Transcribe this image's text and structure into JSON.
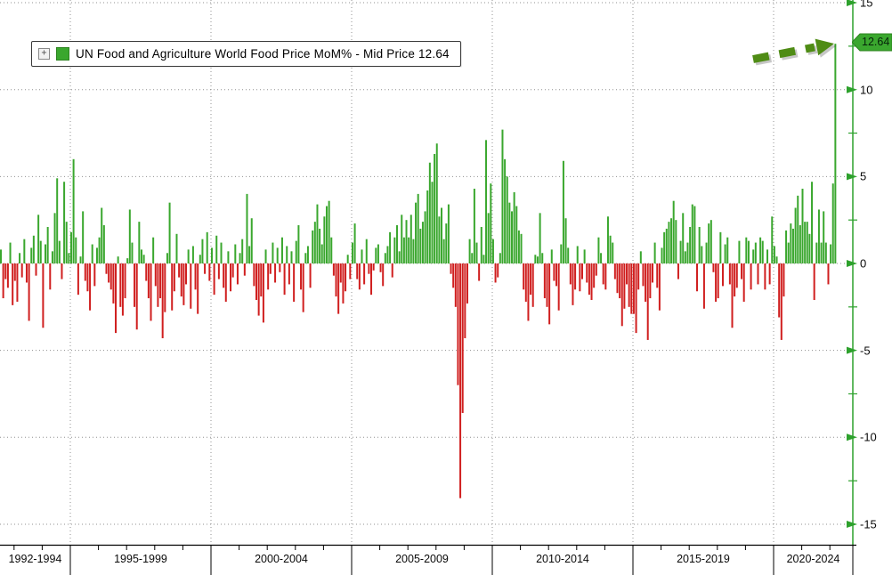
{
  "legend": {
    "label": "UN Food and Agriculture World Food Price MoM% - Mid Price 12.64",
    "expand_icon_glyph": "+",
    "swatch_color": "#3aa72e"
  },
  "y_axis": {
    "tick_labels": [
      "15",
      "10",
      "5",
      "0",
      "-5",
      "-10",
      "-15"
    ],
    "tick_values": [
      15,
      10,
      5,
      0,
      -5,
      -10,
      -15
    ],
    "minor_tick_values": [
      12.5,
      7.5,
      2.5,
      -2.5,
      -7.5,
      -12.5
    ],
    "last_price_badge": "12.64",
    "axis_color": "#2da12c"
  },
  "x_axis": {
    "section_labels": [
      "1992-1994",
      "1995-1999",
      "2000-2004",
      "2005-2009",
      "2010-2014",
      "2015-2019",
      "2020-2024"
    ]
  },
  "annotation": {
    "type": "dashed-arrow",
    "color": "#4f8c15",
    "points_to": "latest bar peak 12.64"
  },
  "chart_data": {
    "type": "bar",
    "title": "UN Food and Agriculture World Food Price MoM% - Mid Price 12.64",
    "ylabel": "MoM %",
    "ylim": [
      -15,
      15
    ],
    "yticks": [
      15,
      10,
      5,
      0,
      -5,
      -10,
      -15
    ],
    "grid": "dotted",
    "legend_position": "top-left",
    "start_month": "1992-07",
    "end_month": "2022-03",
    "last_value": 12.64,
    "colors": {
      "positive": "#3aa72e",
      "negative": "#d01f1f",
      "axis_green": "#2da12c",
      "grid_gray": "#909090",
      "annotation_olive": "#4f8c15"
    },
    "x_section_labels": [
      "1992-1994",
      "1995-1999",
      "2000-2004",
      "2005-2009",
      "2010-2014",
      "2015-2019",
      "2020-2024"
    ],
    "values": [
      0.8,
      -2.0,
      -0.9,
      -1.4,
      1.2,
      -2.4,
      -1.0,
      -2.2,
      0.6,
      -0.8,
      1.4,
      -1.1,
      -3.3,
      0.9,
      1.6,
      -0.7,
      2.8,
      1.3,
      -3.7,
      1.1,
      2.1,
      -1.5,
      0.7,
      2.9,
      4.9,
      1.3,
      -0.9,
      4.7,
      2.4,
      0.6,
      1.8,
      6.0,
      1.5,
      -1.8,
      0.4,
      3.0,
      -1.0,
      -1.6,
      -2.7,
      1.1,
      -1.3,
      0.9,
      1.5,
      3.2,
      2.2,
      -0.6,
      -1.1,
      -1.5,
      -2.3,
      -4.0,
      0.4,
      -2.5,
      -3.0,
      -2.0,
      0.3,
      3.1,
      1.2,
      -2.5,
      -3.8,
      2.4,
      0.8,
      0.5,
      -1.0,
      -2.0,
      -3.3,
      1.5,
      -1.3,
      -2.5,
      -2.0,
      -4.3,
      -2.8,
      0.6,
      3.5,
      -2.7,
      -1.6,
      1.7,
      -0.8,
      -1.9,
      -2.4,
      -1.2,
      0.8,
      -2.6,
      1.0,
      -1.5,
      -2.9,
      0.5,
      1.4,
      -0.6,
      1.8,
      -1.0,
      0.9,
      -1.8,
      1.6,
      -0.9,
      1.2,
      -1.4,
      -2.2,
      0.7,
      -1.6,
      -0.8,
      1.1,
      -1.2,
      0.6,
      1.4,
      -0.7,
      4.0,
      1.0,
      2.6,
      -1.3,
      -2.1,
      -3.0,
      -1.9,
      -3.4,
      0.8,
      -1.5,
      -0.6,
      1.2,
      -1.1,
      0.9,
      -0.5,
      1.5,
      -1.8,
      1.0,
      -1.2,
      0.7,
      -2.2,
      1.3,
      2.2,
      -1.5,
      -2.8,
      0.6,
      1.0,
      -1.4,
      1.9,
      2.4,
      3.4,
      2.0,
      1.1,
      2.7,
      3.3,
      3.6,
      1.5,
      -0.7,
      -1.9,
      -2.9,
      -1.1,
      -2.3,
      -1.6,
      0.5,
      -0.9,
      1.2,
      2.3,
      -0.9,
      -1.5,
      0.8,
      -1.2,
      1.4,
      -0.6,
      -1.8,
      -0.4,
      0.9,
      1.1,
      -0.5,
      -1.3,
      0.6,
      1.0,
      1.8,
      -0.8,
      1.5,
      2.2,
      0.7,
      2.8,
      1.5,
      2.5,
      1.5,
      2.8,
      1.4,
      3.5,
      4.0,
      2.0,
      2.4,
      3.0,
      4.2,
      5.8,
      4.7,
      6.3,
      6.9,
      2.7,
      3.2,
      1.4,
      2.3,
      3.4,
      -0.6,
      -1.4,
      -2.5,
      -7.0,
      -13.5,
      -8.6,
      -4.3,
      -2.3,
      1.4,
      0.6,
      4.3,
      1.2,
      -1.0,
      2.1,
      0.5,
      7.1,
      2.9,
      4.6,
      1.4,
      -1.1,
      -0.8,
      0.6,
      7.7,
      6.0,
      5.0,
      3.5,
      3.0,
      4.1,
      3.3,
      1.9,
      1.7,
      -1.5,
      -2.2,
      -3.3,
      -1.8,
      -2.5,
      0.5,
      0.4,
      2.9,
      0.6,
      -2.0,
      -2.5,
      -3.5,
      0.8,
      -1.0,
      -1.3,
      -2.7,
      1.1,
      5.9,
      2.6,
      0.9,
      -1.2,
      -2.4,
      -1.5,
      1.0,
      -1.6,
      -0.9,
      0.8,
      -1.1,
      -1.8,
      -2.1,
      -1.4,
      -0.7,
      1.5,
      0.6,
      -1.2,
      -1.5,
      2.7,
      1.6,
      1.2,
      -0.9,
      -1.7,
      -2.0,
      -3.6,
      -2.6,
      -1.2,
      -2.5,
      -2.9,
      -2.9,
      -4.0,
      -1.5,
      0.7,
      -1.3,
      -2.2,
      -4.4,
      -2.0,
      -1.1,
      1.2,
      -1.4,
      -2.7,
      0.9,
      1.8,
      2.0,
      2.4,
      2.6,
      3.6,
      2.5,
      -0.9,
      1.3,
      2.9,
      0.7,
      1.2,
      2.1,
      3.4,
      3.3,
      -1.6,
      2.1,
      1.0,
      -2.6,
      1.2,
      2.3,
      2.5,
      -0.5,
      -2.2,
      -2.0,
      1.8,
      -1.3,
      1.1,
      1.5,
      -1.2,
      -3.7,
      -1.9,
      -1.4,
      1.3,
      -0.9,
      -2.2,
      1.5,
      1.3,
      -1.5,
      0.8,
      1.2,
      -1.2,
      1.5,
      1.3,
      -1.5,
      0.8,
      -1.2,
      2.7,
      1.0,
      0.4,
      -3.1,
      -4.4,
      -1.9,
      1.9,
      1.2,
      2.3,
      2.0,
      3.2,
      3.9,
      2.2,
      4.3,
      2.4,
      2.4,
      1.7,
      4.7,
      -2.1,
      1.2,
      3.1,
      1.2,
      3.0,
      1.2,
      -1.2,
      1.1,
      4.6,
      12.64
    ]
  }
}
